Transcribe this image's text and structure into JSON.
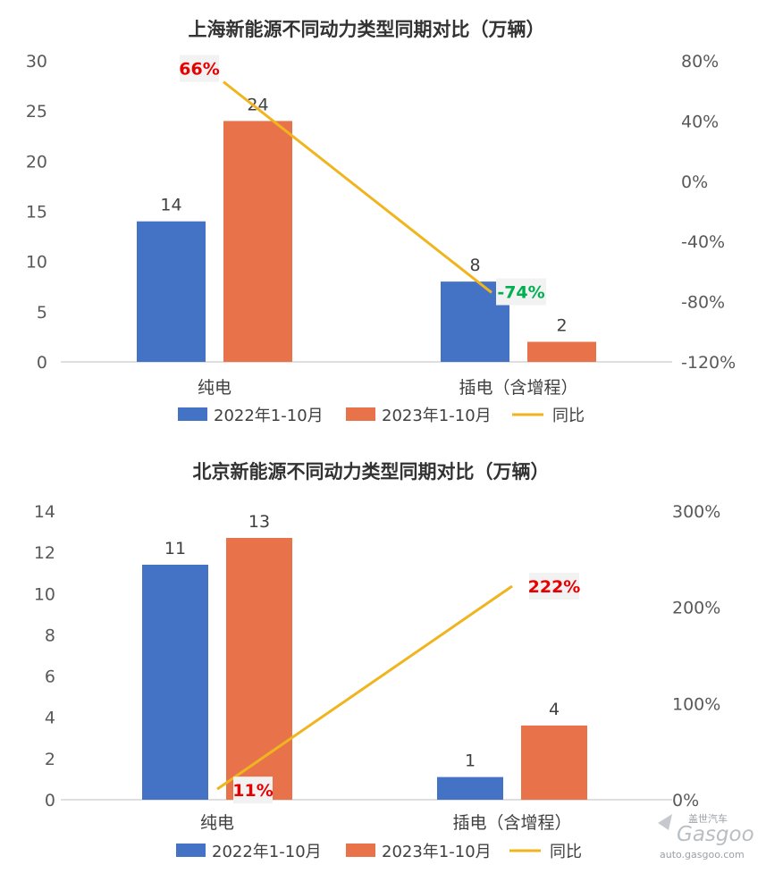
{
  "colors": {
    "blue": "#4472C4",
    "orange": "#E8734A",
    "line": "#F0B51E",
    "red": "#E60000",
    "green": "#00B050",
    "axis": "#BFBFBF",
    "pct_bg": "#F2F2F2"
  },
  "legend": [
    "2022年1-10月",
    "2023年1-10月",
    "同比"
  ],
  "watermark": {
    "brand": "盖世汽车",
    "logo_text": "Gasgoo",
    "url": "auto.gasgoo.com"
  },
  "chart_data": [
    {
      "type": "bar",
      "title": "上海新能源不同动力类型同期对比（万辆）",
      "categories": [
        "纯电",
        "插电（含增程）"
      ],
      "series": [
        {
          "name": "2022年1-10月",
          "values": [
            14,
            8
          ]
        },
        {
          "name": "2023年1-10月",
          "values": [
            24,
            2
          ]
        }
      ],
      "line": {
        "name": "同比",
        "values": [
          66,
          -74
        ],
        "labels": [
          "66%",
          "-74%"
        ],
        "label_colors": [
          "red",
          "green"
        ]
      },
      "ylim": [
        0,
        30
      ],
      "yticks": [
        "0",
        "5",
        "10",
        "15",
        "20",
        "25",
        "30"
      ],
      "y2lim": [
        -120,
        80
      ],
      "y2ticks": [
        "-120%",
        "-80%",
        "-40%",
        "0%",
        "40%",
        "80%"
      ],
      "data_labels": [
        [
          "14",
          "8"
        ],
        [
          "24",
          "2"
        ]
      ],
      "legend_position": "bottom",
      "grid": false
    },
    {
      "type": "bar",
      "title": "北京新能源不同动力类型同期对比（万辆）",
      "categories": [
        "纯电",
        "插电（含增程）"
      ],
      "series": [
        {
          "name": "2022年1-10月",
          "values": [
            11.4,
            1.1
          ]
        },
        {
          "name": "2023年1-10月",
          "values": [
            12.7,
            3.6
          ]
        }
      ],
      "line": {
        "name": "同比",
        "values": [
          11,
          222
        ],
        "labels": [
          "11%",
          "222%"
        ],
        "label_colors": [
          "red",
          "red"
        ]
      },
      "ylim": [
        0,
        14
      ],
      "yticks": [
        "0",
        "2",
        "4",
        "6",
        "8",
        "10",
        "12",
        "14"
      ],
      "y2lim": [
        0,
        300
      ],
      "y2ticks": [
        "0%",
        "100%",
        "200%",
        "300%"
      ],
      "data_labels": [
        [
          "11",
          "1"
        ],
        [
          "13",
          "4"
        ]
      ],
      "legend_position": "bottom",
      "grid": false
    }
  ]
}
